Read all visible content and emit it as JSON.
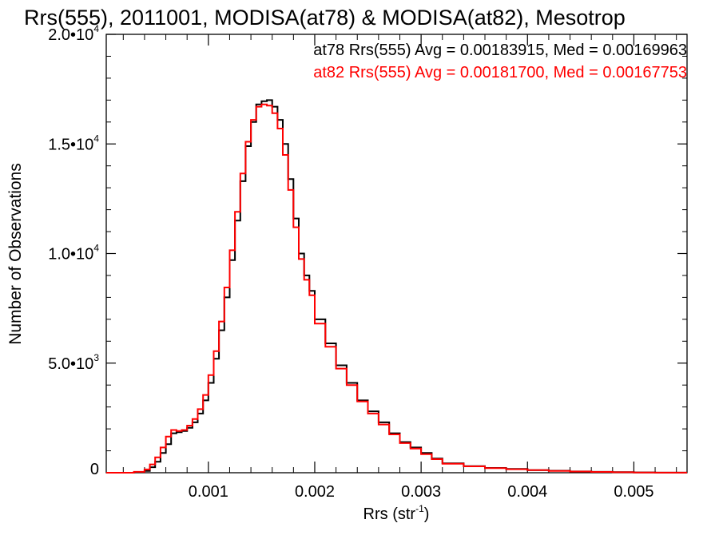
{
  "chart_data": {
    "type": "line",
    "title": "Rrs(555), 2011001, MODISA(at78) & MODISA(at82), Mesotrop",
    "xlabel_main": "Rrs (str",
    "xlabel_sup": "-1",
    "xlabel_close": ")",
    "ylabel": "Number of Observations",
    "xlim": [
      4e-05,
      0.0055
    ],
    "ylim": [
      0,
      20000
    ],
    "x_ticks": [
      {
        "value": 0.001,
        "label": "0.001"
      },
      {
        "value": 0.002,
        "label": "0.002"
      },
      {
        "value": 0.003,
        "label": "0.003"
      },
      {
        "value": 0.004,
        "label": "0.004"
      },
      {
        "value": 0.005,
        "label": "0.005"
      }
    ],
    "y_ticks": [
      {
        "value": 0,
        "mant": "0",
        "exp": ""
      },
      {
        "value": 5000,
        "mant": "5.0•1",
        "exp": "3"
      },
      {
        "value": 10000,
        "mant": "1.0•1",
        "exp": "4"
      },
      {
        "value": 15000,
        "mant": "1.5•1",
        "exp": "4"
      },
      {
        "value": 20000,
        "mant": "2.0•1",
        "exp": "4"
      }
    ],
    "y_ticks_note": "tick labels printed as mantissa + 0 with superscript exponent",
    "annotations": [
      {
        "text": "at78 Rrs(555) Avg = 0.00183915, Med = 0.00169963",
        "color": "#000000"
      },
      {
        "text": "at82 Rrs(555) Avg = 0.00181700, Med = 0.00167753",
        "color": "#ff0000"
      }
    ],
    "series": [
      {
        "color": "#000000",
        "x": [
          0.0001,
          0.0003,
          0.0004,
          0.00045,
          0.0005,
          0.00055,
          0.0006,
          0.00065,
          0.0007,
          0.00075,
          0.0008,
          0.00085,
          0.0009,
          0.00095,
          0.001,
          0.00105,
          0.0011,
          0.00115,
          0.0012,
          0.00125,
          0.0013,
          0.00135,
          0.0014,
          0.00145,
          0.0015,
          0.00155,
          0.0016,
          0.00165,
          0.0017,
          0.00175,
          0.0018,
          0.00185,
          0.0019,
          0.00195,
          0.002,
          0.0021,
          0.0022,
          0.0023,
          0.0024,
          0.0025,
          0.0026,
          0.0027,
          0.0028,
          0.0029,
          0.003,
          0.0031,
          0.0032,
          0.0034,
          0.0036,
          0.0038,
          0.004,
          0.0042,
          0.0044,
          0.0046,
          0.0048,
          0.005,
          0.0052,
          0.0055
        ],
        "y": [
          0,
          0,
          20,
          80,
          250,
          500,
          900,
          1300,
          1800,
          1850,
          1900,
          2050,
          2300,
          2700,
          3300,
          4100,
          5200,
          6500,
          8000,
          9700,
          11500,
          13300,
          14900,
          16000,
          16800,
          16950,
          17000,
          16700,
          16100,
          15000,
          13400,
          11600,
          10000,
          9000,
          8300,
          7000,
          5900,
          4900,
          4100,
          3300,
          2800,
          2300,
          1800,
          1400,
          1150,
          900,
          650,
          430,
          300,
          220,
          170,
          120,
          90,
          60,
          40,
          25,
          15,
          5
        ]
      },
      {
        "color": "#ff0000",
        "x": [
          0.0001,
          0.0003,
          0.0004,
          0.00045,
          0.0005,
          0.00055,
          0.0006,
          0.00065,
          0.0007,
          0.00075,
          0.0008,
          0.00085,
          0.0009,
          0.00095,
          0.001,
          0.00105,
          0.0011,
          0.00115,
          0.0012,
          0.00125,
          0.0013,
          0.00135,
          0.0014,
          0.00145,
          0.0015,
          0.00155,
          0.0016,
          0.00165,
          0.0017,
          0.00175,
          0.0018,
          0.00185,
          0.0019,
          0.00195,
          0.002,
          0.0021,
          0.0022,
          0.0023,
          0.0024,
          0.0025,
          0.0026,
          0.0027,
          0.0028,
          0.0029,
          0.003,
          0.0031,
          0.0032,
          0.0034,
          0.0036,
          0.0038,
          0.004,
          0.0042,
          0.0044,
          0.0046,
          0.0048,
          0.005,
          0.0052,
          0.0055
        ],
        "y": [
          0,
          0,
          40,
          150,
          380,
          700,
          1150,
          1650,
          1950,
          1900,
          1950,
          2150,
          2450,
          2900,
          3550,
          4450,
          5550,
          6900,
          8450,
          10150,
          11900,
          13650,
          15100,
          16100,
          16700,
          16800,
          16750,
          16400,
          15700,
          14500,
          12900,
          11200,
          9750,
          8800,
          8100,
          6800,
          5750,
          4750,
          4000,
          3250,
          2700,
          2200,
          1750,
          1350,
          1100,
          850,
          620,
          410,
          290,
          210,
          160,
          115,
          85,
          55,
          38,
          22,
          12,
          4
        ]
      }
    ]
  }
}
